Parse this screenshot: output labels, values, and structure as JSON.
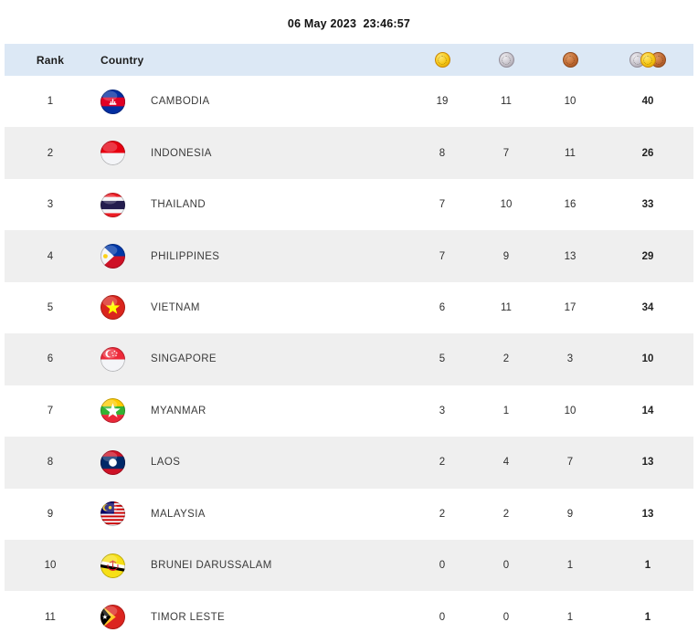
{
  "page": {
    "timestamp": "06 May 2023  23:46:57"
  },
  "table": {
    "columns": {
      "rank": "Rank",
      "country": "Country",
      "gold_icon": "gold-medal-icon",
      "silver_icon": "silver-medal-icon",
      "bronze_icon": "bronze-medal-icon",
      "total_icon": "all-medals-icon"
    },
    "rows": [
      {
        "rank": "1",
        "country": "CAMBODIA",
        "flag": "kh",
        "gold": "19",
        "silver": "11",
        "bronze": "10",
        "total": "40"
      },
      {
        "rank": "2",
        "country": "INDONESIA",
        "flag": "id",
        "gold": "8",
        "silver": "7",
        "bronze": "11",
        "total": "26"
      },
      {
        "rank": "3",
        "country": "THAILAND",
        "flag": "th",
        "gold": "7",
        "silver": "10",
        "bronze": "16",
        "total": "33"
      },
      {
        "rank": "4",
        "country": "PHILIPPINES",
        "flag": "ph",
        "gold": "7",
        "silver": "9",
        "bronze": "13",
        "total": "29"
      },
      {
        "rank": "5",
        "country": "VIETNAM",
        "flag": "vn",
        "gold": "6",
        "silver": "11",
        "bronze": "17",
        "total": "34"
      },
      {
        "rank": "6",
        "country": "SINGAPORE",
        "flag": "sg",
        "gold": "5",
        "silver": "2",
        "bronze": "3",
        "total": "10"
      },
      {
        "rank": "7",
        "country": "MYANMAR",
        "flag": "mm",
        "gold": "3",
        "silver": "1",
        "bronze": "10",
        "total": "14"
      },
      {
        "rank": "8",
        "country": "LAOS",
        "flag": "la",
        "gold": "2",
        "silver": "4",
        "bronze": "7",
        "total": "13"
      },
      {
        "rank": "9",
        "country": "MALAYSIA",
        "flag": "my",
        "gold": "2",
        "silver": "2",
        "bronze": "9",
        "total": "13"
      },
      {
        "rank": "10",
        "country": "BRUNEI DARUSSALAM",
        "flag": "bn",
        "gold": "0",
        "silver": "0",
        "bronze": "1",
        "total": "1"
      },
      {
        "rank": "11",
        "country": "TIMOR LESTE",
        "flag": "tl",
        "gold": "0",
        "silver": "0",
        "bronze": "1",
        "total": "1"
      }
    ]
  },
  "colors": {
    "header_bg": "#dce8f5",
    "alt_row_bg": "#efefef",
    "gold": "#f6c612",
    "silver": "#c7c3cb",
    "bronze": "#c06a32"
  }
}
